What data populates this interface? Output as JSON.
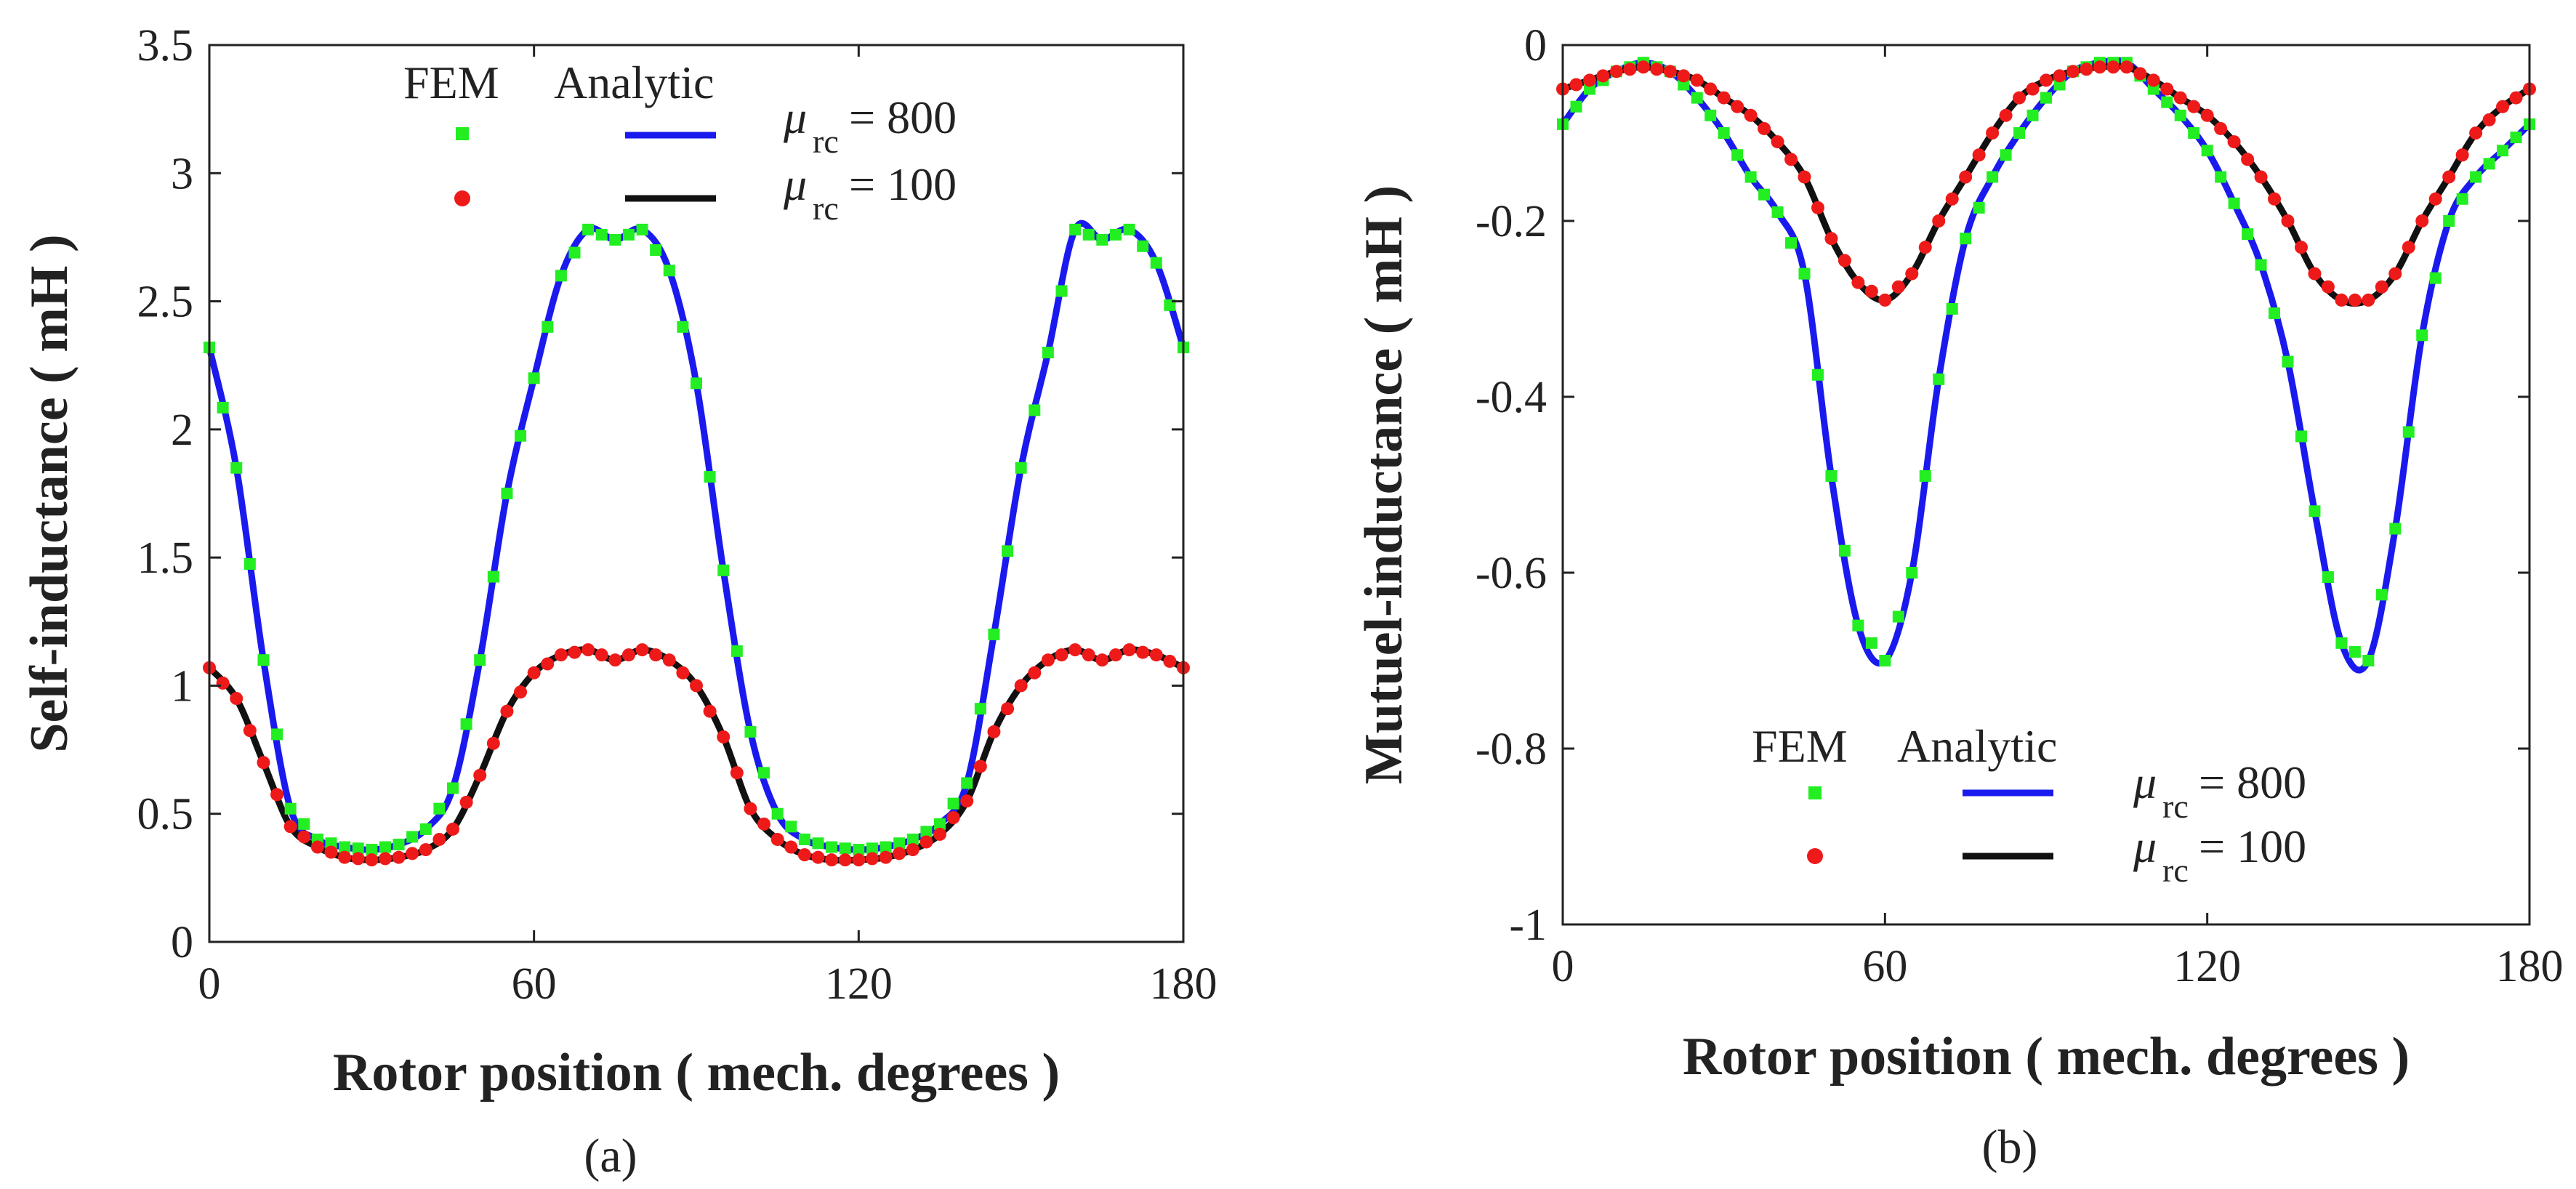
{
  "chart_data": [
    {
      "type": "line",
      "panel_label": "(a)",
      "xlabel": "Rotor position ( mech. degrees )",
      "ylabel": "Self-inductance ( mH )",
      "xlim": [
        0,
        180
      ],
      "ylim": [
        0,
        3.5
      ],
      "xticks": [
        0,
        60,
        120,
        180
      ],
      "xtick_labels": [
        "0",
        "60",
        "120",
        "180"
      ],
      "yticks": [
        0,
        0.5,
        1,
        1.5,
        2,
        2.5,
        3,
        3.5
      ],
      "ytick_labels": [
        "0",
        "0.5",
        "1",
        "1.5",
        "2",
        "2.5",
        "3",
        "3.5"
      ],
      "legend": {
        "position": "top",
        "col_fem": "FEM",
        "col_analytic": "Analytic",
        "rows": [
          {
            "mu": "μ",
            "sub": "rc",
            "value": "= 800"
          },
          {
            "mu": "μ",
            "sub": "rc",
            "value": "= 100"
          }
        ]
      },
      "series": [
        {
          "name": "μrc = 800",
          "fem_color": "#22ee22",
          "fem_marker": "square",
          "line_color": "#1a1aee",
          "x": [
            0,
            5,
            10,
            15,
            20,
            25,
            30,
            35,
            40,
            45,
            50,
            55,
            60,
            65,
            70,
            75,
            80,
            85,
            90,
            95,
            100,
            105,
            110,
            115,
            120,
            125,
            130,
            135,
            140,
            145,
            150,
            155,
            160,
            165,
            170,
            175,
            180
          ],
          "y": [
            2.32,
            1.85,
            1.1,
            0.52,
            0.4,
            0.37,
            0.36,
            0.38,
            0.44,
            0.6,
            1.1,
            1.75,
            2.2,
            2.6,
            2.78,
            2.74,
            2.78,
            2.62,
            2.18,
            1.45,
            0.82,
            0.5,
            0.4,
            0.37,
            0.36,
            0.37,
            0.4,
            0.46,
            0.62,
            1.2,
            1.85,
            2.3,
            2.78,
            2.74,
            2.78,
            2.65,
            2.32
          ]
        },
        {
          "name": "μrc = 100",
          "fem_color": "#ee1a1a",
          "fem_marker": "circle",
          "line_color": "#111111",
          "x": [
            0,
            5,
            10,
            15,
            20,
            25,
            30,
            35,
            40,
            45,
            50,
            55,
            60,
            65,
            70,
            75,
            80,
            85,
            90,
            95,
            100,
            105,
            110,
            115,
            120,
            125,
            130,
            135,
            140,
            145,
            150,
            155,
            160,
            165,
            170,
            175,
            180
          ],
          "y": [
            1.07,
            0.95,
            0.7,
            0.45,
            0.37,
            0.33,
            0.32,
            0.33,
            0.36,
            0.44,
            0.65,
            0.9,
            1.05,
            1.12,
            1.14,
            1.1,
            1.14,
            1.1,
            1.0,
            0.8,
            0.52,
            0.4,
            0.34,
            0.32,
            0.32,
            0.33,
            0.36,
            0.42,
            0.55,
            0.82,
            1.0,
            1.1,
            1.14,
            1.1,
            1.14,
            1.12,
            1.07
          ]
        }
      ]
    },
    {
      "type": "line",
      "panel_label": "(b)",
      "xlabel": "Rotor position ( mech. degrees )",
      "ylabel": "Mutuel-inductance ( mH )",
      "xlim": [
        0,
        180
      ],
      "ylim": [
        -1,
        0
      ],
      "xticks": [
        0,
        60,
        120,
        180
      ],
      "xtick_labels": [
        "0",
        "60",
        "120",
        "180"
      ],
      "yticks": [
        -1,
        -0.8,
        -0.6,
        -0.4,
        -0.2,
        0
      ],
      "ytick_labels": [
        "-1",
        "-0.8",
        "-0.6",
        "-0.4",
        "-0.2",
        "0"
      ],
      "legend": {
        "position": "bottom",
        "col_fem": "FEM",
        "col_analytic": "Analytic",
        "rows": [
          {
            "mu": "μ",
            "sub": "rc",
            "value": "= 800"
          },
          {
            "mu": "μ",
            "sub": "rc",
            "value": "= 100"
          }
        ]
      },
      "series": [
        {
          "name": "μrc = 800",
          "fem_color": "#22ee22",
          "fem_marker": "square",
          "line_color": "#1a1aee",
          "x": [
            0,
            5,
            10,
            15,
            20,
            25,
            30,
            35,
            40,
            45,
            50,
            55,
            60,
            65,
            70,
            75,
            80,
            85,
            90,
            95,
            100,
            105,
            110,
            115,
            120,
            125,
            130,
            135,
            140,
            145,
            150,
            155,
            160,
            165,
            170,
            175,
            180
          ],
          "y": [
            -0.09,
            -0.05,
            -0.03,
            -0.02,
            -0.03,
            -0.06,
            -0.1,
            -0.15,
            -0.19,
            -0.26,
            -0.49,
            -0.66,
            -0.7,
            -0.6,
            -0.38,
            -0.22,
            -0.15,
            -0.1,
            -0.06,
            -0.03,
            -0.02,
            -0.02,
            -0.05,
            -0.08,
            -0.12,
            -0.18,
            -0.25,
            -0.36,
            -0.53,
            -0.68,
            -0.7,
            -0.55,
            -0.33,
            -0.2,
            -0.15,
            -0.12,
            -0.09
          ]
        },
        {
          "name": "μrc = 100",
          "fem_color": "#ee1a1a",
          "fem_marker": "circle",
          "line_color": "#111111",
          "x": [
            0,
            5,
            10,
            15,
            20,
            25,
            30,
            35,
            40,
            45,
            50,
            55,
            60,
            65,
            70,
            75,
            80,
            85,
            90,
            95,
            100,
            105,
            110,
            115,
            120,
            125,
            130,
            135,
            140,
            145,
            150,
            155,
            160,
            165,
            170,
            175,
            180
          ],
          "y": [
            -0.05,
            -0.04,
            -0.03,
            -0.025,
            -0.03,
            -0.04,
            -0.06,
            -0.08,
            -0.11,
            -0.15,
            -0.22,
            -0.27,
            -0.29,
            -0.26,
            -0.2,
            -0.15,
            -0.1,
            -0.06,
            -0.04,
            -0.03,
            -0.025,
            -0.025,
            -0.04,
            -0.06,
            -0.08,
            -0.11,
            -0.15,
            -0.2,
            -0.26,
            -0.29,
            -0.29,
            -0.26,
            -0.2,
            -0.15,
            -0.1,
            -0.07,
            -0.05
          ]
        }
      ]
    }
  ]
}
